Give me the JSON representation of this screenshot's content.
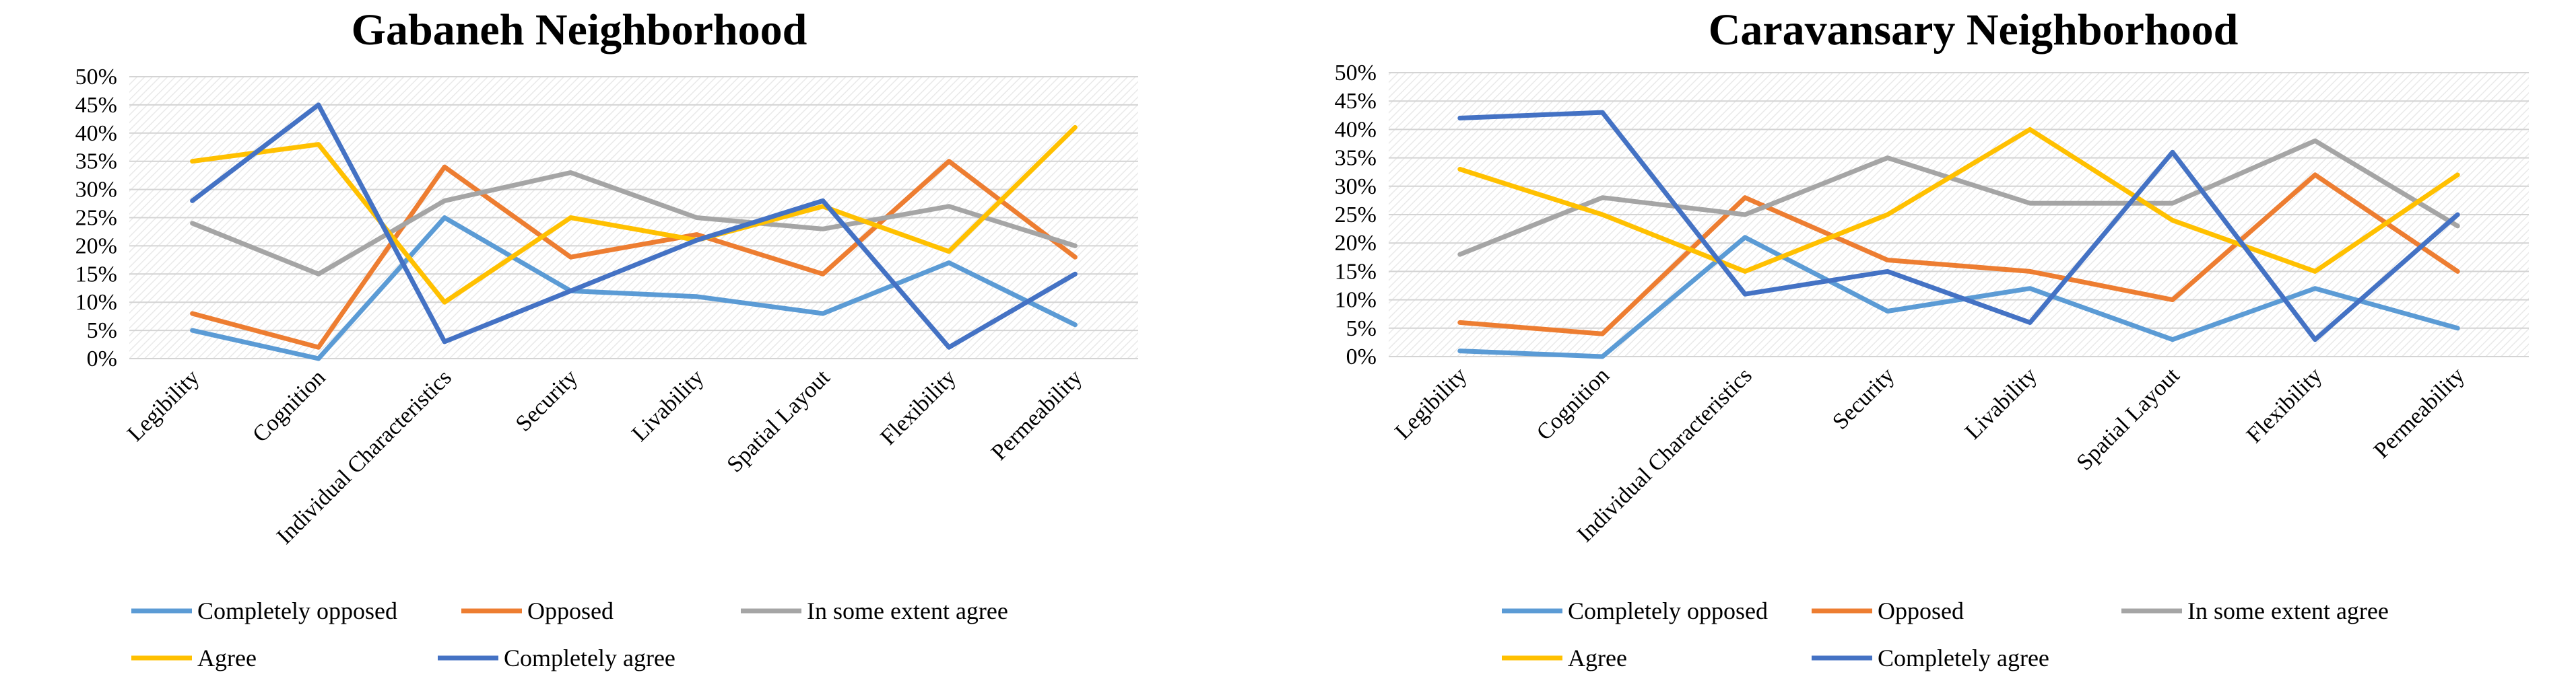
{
  "chart_data": [
    {
      "type": "line",
      "title": "Gabaneh Neighborhood",
      "xlabel": "",
      "ylabel": "",
      "ylim": [
        0,
        50
      ],
      "y_ticks": [
        "0%",
        "5%",
        "10%",
        "15%",
        "20%",
        "25%",
        "30%",
        "35%",
        "40%",
        "45%",
        "50%"
      ],
      "categories": [
        "Legibility",
        "Cognition",
        "Individual Characteristics",
        "Security",
        "Livability",
        "Spatial Layout",
        "Flexibility",
        "Permeability"
      ],
      "series": [
        {
          "name": "Completely opposed",
          "color": "#5b9bd5",
          "values": [
            5,
            0,
            25,
            12,
            11,
            8,
            17,
            6
          ]
        },
        {
          "name": "Opposed",
          "color": "#ed7d31",
          "values": [
            8,
            2,
            34,
            18,
            22,
            15,
            35,
            18
          ]
        },
        {
          "name": "In some extent agree",
          "color": "#a5a5a5",
          "values": [
            24,
            15,
            28,
            33,
            25,
            23,
            27,
            20
          ]
        },
        {
          "name": "Agree",
          "color": "#ffc000",
          "values": [
            35,
            38,
            10,
            25,
            21,
            27,
            19,
            41
          ]
        },
        {
          "name": "Completely agree",
          "color": "#4472c4",
          "values": [
            28,
            45,
            3,
            12,
            21,
            28,
            2,
            15
          ]
        }
      ]
    },
    {
      "type": "line",
      "title": "Caravansary Neighborhood",
      "xlabel": "",
      "ylabel": "",
      "ylim": [
        0,
        50
      ],
      "y_ticks": [
        "0%",
        "5%",
        "10%",
        "15%",
        "20%",
        "25%",
        "30%",
        "35%",
        "40%",
        "45%",
        "50%"
      ],
      "categories": [
        "Legibility",
        "Cognition",
        "Individual Characteristics",
        "Security",
        "Livability",
        "Spatial Layout",
        "Flexibility",
        "Permeability"
      ],
      "series": [
        {
          "name": "Completely opposed",
          "color": "#5b9bd5",
          "values": [
            1,
            0,
            21,
            8,
            12,
            3,
            12,
            5
          ]
        },
        {
          "name": "Opposed",
          "color": "#ed7d31",
          "values": [
            6,
            4,
            28,
            17,
            15,
            10,
            32,
            15
          ]
        },
        {
          "name": "In some extent agree",
          "color": "#a5a5a5",
          "values": [
            18,
            28,
            25,
            35,
            27,
            27,
            38,
            23
          ]
        },
        {
          "name": "Agree",
          "color": "#ffc000",
          "values": [
            33,
            25,
            15,
            25,
            40,
            24,
            15,
            32
          ]
        },
        {
          "name": "Completely agree",
          "color": "#4472c4",
          "values": [
            42,
            43,
            11,
            15,
            6,
            36,
            3,
            25
          ]
        }
      ]
    }
  ]
}
